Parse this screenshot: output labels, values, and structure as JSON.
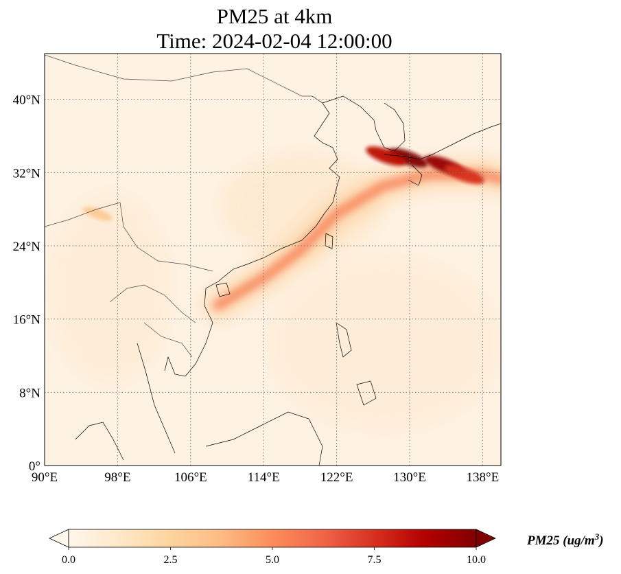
{
  "title": "PM25 at 4km",
  "subtitle": "Time: 2024-02-04 12:00:00",
  "map": {
    "lon_range": [
      90,
      140
    ],
    "lat_range": [
      0,
      45
    ],
    "lon_ticks": [
      90,
      98,
      106,
      114,
      122,
      130,
      138
    ],
    "lon_tick_labels": [
      "90°E",
      "98°E",
      "106°E",
      "114°E",
      "122°E",
      "130°E",
      "138°E"
    ],
    "lat_ticks": [
      0,
      8,
      16,
      24,
      32,
      40
    ],
    "lat_tick_labels": [
      "0°",
      "8°N",
      "16°N",
      "24°N",
      "32°N",
      "40°N"
    ],
    "gridlines": "dotted",
    "colormap": "OrRd",
    "plumes": [
      {
        "name": "transport band",
        "lons": [
          109,
          114,
          118,
          122,
          127,
          132,
          138,
          140
        ],
        "lats": [
          17.5,
          20.5,
          23.5,
          27.5,
          30.5,
          31.8,
          31.8,
          31.3
        ],
        "value": 5.5
      },
      {
        "name": "korea strait hotspot",
        "lon": 129.8,
        "lat": 33.6,
        "value": 10.0
      },
      {
        "name": "west kyushu hotspot",
        "lon": 127.4,
        "lat": 33.8,
        "value": 8.5
      },
      {
        "name": "shikoku hotspot",
        "lon": 133.8,
        "lat": 32.8,
        "value": 9.5
      },
      {
        "name": "honshu coast",
        "lon": 136.0,
        "lat": 31.8,
        "value": 7.5
      },
      {
        "name": "myanmar hill",
        "lon": 95.8,
        "lat": 27.5,
        "value": 3.0
      }
    ]
  },
  "colorbar": {
    "label_main": "PM25 (ug/m",
    "label_sup": "3",
    "label_close": ")",
    "range": [
      0,
      10
    ],
    "ticks": [
      0,
      2.5,
      5,
      7.5,
      10
    ],
    "tick_labels": [
      "0.0",
      "2.5",
      "5.0",
      "7.5",
      "10.0"
    ],
    "extend": "both",
    "colors": [
      "#fff7ec",
      "#fee8c8",
      "#fdd49e",
      "#fdbb84",
      "#fc8d59",
      "#ef6548",
      "#d7301f",
      "#b30000",
      "#7f0000"
    ]
  }
}
